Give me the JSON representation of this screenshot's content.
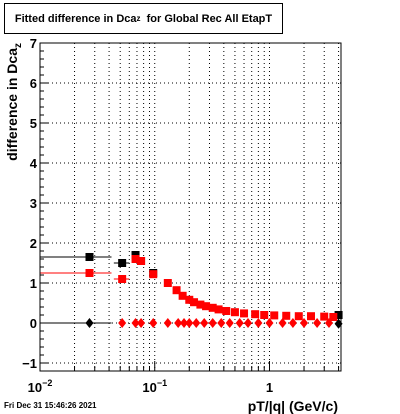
{
  "title": {
    "prefix": "Fitted difference in Dca",
    "subscript": "z",
    "suffix": "for Global Rec All EtapT"
  },
  "timestamp": "Fri Dec 31 15:46:26 2021",
  "chart_data": {
    "type": "scatter",
    "xlabel": "pT/|q| (GeV/c)",
    "ylabel": "difference in Dca",
    "ylabel_subscript": "z",
    "xscale": "log",
    "xlim": [
      0.01,
      4.2
    ],
    "ylim": [
      -1.2,
      7
    ],
    "grid": true,
    "x_ticks": [
      {
        "value": 0.01,
        "mantissa": "10",
        "exponent": "−2"
      },
      {
        "value": 0.1,
        "mantissa": "10",
        "exponent": "−1"
      },
      {
        "value": 1,
        "mantissa": "1",
        "exponent": ""
      }
    ],
    "y_ticks": [
      -1,
      0,
      1,
      2,
      3,
      4,
      5,
      6,
      7
    ],
    "colors": {
      "black_series": "#000000",
      "red_series": "#ff0000",
      "frame": "#000000",
      "grid": "#000000"
    },
    "series": [
      {
        "marker": "square",
        "color": "#000000",
        "points": [
          {
            "x": 0.027,
            "y": 1.65,
            "xerr_lo": 0.017,
            "xerr_hi": 0.015
          },
          {
            "x": 0.052,
            "y": 1.5,
            "xerr_lo": 0.008,
            "xerr_hi": 0.008
          },
          {
            "x": 0.068,
            "y": 1.7,
            "xerr_lo": 0.004,
            "xerr_hi": 0.004
          },
          {
            "x": 0.076,
            "y": 1.55,
            "xerr_lo": 0.004,
            "xerr_hi": 0.004
          },
          {
            "x": 0.097,
            "y": 1.25,
            "xerr_lo": 0.007,
            "xerr_hi": 0.007
          },
          {
            "x": 4.0,
            "y": 0.2,
            "xerr_lo": 0.15,
            "xerr_hi": 0.15
          }
        ]
      },
      {
        "marker": "square",
        "color": "#ff0000",
        "points": [
          {
            "x": 0.027,
            "y": 1.25,
            "xerr_lo": 0.017,
            "xerr_hi": 0.015
          },
          {
            "x": 0.052,
            "y": 1.1,
            "xerr_lo": 0.008,
            "xerr_hi": 0.008
          },
          {
            "x": 0.068,
            "y": 1.6,
            "xerr_lo": 0.004,
            "xerr_hi": 0.004
          },
          {
            "x": 0.076,
            "y": 1.55,
            "xerr_lo": 0.004,
            "xerr_hi": 0.004
          },
          {
            "x": 0.097,
            "y": 1.22,
            "xerr_lo": 0.007,
            "xerr_hi": 0.007
          },
          {
            "x": 0.13,
            "y": 1.0,
            "xerr_lo": 0.006,
            "xerr_hi": 0.006
          },
          {
            "x": 0.155,
            "y": 0.82,
            "xerr_lo": 0.006,
            "xerr_hi": 0.006
          },
          {
            "x": 0.175,
            "y": 0.68,
            "xerr_lo": 0.006,
            "xerr_hi": 0.006
          },
          {
            "x": 0.2,
            "y": 0.58,
            "xerr_lo": 0.006,
            "xerr_hi": 0.006
          },
          {
            "x": 0.22,
            "y": 0.52,
            "xerr_lo": 0.006,
            "xerr_hi": 0.006
          },
          {
            "x": 0.25,
            "y": 0.46,
            "xerr_lo": 0.006,
            "xerr_hi": 0.006
          },
          {
            "x": 0.28,
            "y": 0.42,
            "xerr_lo": 0.006,
            "xerr_hi": 0.006
          },
          {
            "x": 0.32,
            "y": 0.38,
            "xerr_lo": 0.006,
            "xerr_hi": 0.006
          },
          {
            "x": 0.36,
            "y": 0.34,
            "xerr_lo": 0.006,
            "xerr_hi": 0.006
          },
          {
            "x": 0.42,
            "y": 0.3,
            "xerr_lo": 0.006,
            "xerr_hi": 0.006
          },
          {
            "x": 0.5,
            "y": 0.27,
            "xerr_lo": 0.006,
            "xerr_hi": 0.006
          },
          {
            "x": 0.6,
            "y": 0.24,
            "xerr_lo": 0.006,
            "xerr_hi": 0.006
          },
          {
            "x": 0.75,
            "y": 0.22,
            "xerr_lo": 0.006,
            "xerr_hi": 0.006
          },
          {
            "x": 0.9,
            "y": 0.2,
            "xerr_lo": 0.006,
            "xerr_hi": 0.006
          },
          {
            "x": 1.1,
            "y": 0.19,
            "xerr_lo": 0.006,
            "xerr_hi": 0.006
          },
          {
            "x": 1.4,
            "y": 0.18,
            "xerr_lo": 0.006,
            "xerr_hi": 0.006
          },
          {
            "x": 1.8,
            "y": 0.17,
            "xerr_lo": 0.006,
            "xerr_hi": 0.006
          },
          {
            "x": 2.3,
            "y": 0.17,
            "xerr_lo": 0.006,
            "xerr_hi": 0.006
          },
          {
            "x": 3.0,
            "y": 0.16,
            "xerr_lo": 0.006,
            "xerr_hi": 0.006
          },
          {
            "x": 3.6,
            "y": 0.15,
            "xerr_lo": 0.006,
            "xerr_hi": 0.006
          }
        ]
      },
      {
        "marker": "diamond",
        "color": "#000000",
        "points": [
          {
            "x": 0.027,
            "y": 0.0,
            "xerr_lo": 0.017,
            "xerr_hi": 0.015
          },
          {
            "x": 4.0,
            "y": -0.02,
            "xerr_lo": 0.15,
            "xerr_hi": 0.15
          }
        ]
      },
      {
        "marker": "diamond",
        "color": "#ff0000",
        "points": [
          {
            "x": 0.052,
            "y": 0.0
          },
          {
            "x": 0.068,
            "y": 0.0
          },
          {
            "x": 0.076,
            "y": 0.0
          },
          {
            "x": 0.097,
            "y": 0.0
          },
          {
            "x": 0.13,
            "y": 0.0
          },
          {
            "x": 0.16,
            "y": 0.0
          },
          {
            "x": 0.18,
            "y": 0.0
          },
          {
            "x": 0.2,
            "y": 0.0
          },
          {
            "x": 0.23,
            "y": 0.0
          },
          {
            "x": 0.27,
            "y": 0.0
          },
          {
            "x": 0.32,
            "y": 0.0
          },
          {
            "x": 0.38,
            "y": 0.0
          },
          {
            "x": 0.45,
            "y": 0.0
          },
          {
            "x": 0.55,
            "y": 0.0
          },
          {
            "x": 0.65,
            "y": 0.0
          },
          {
            "x": 0.8,
            "y": 0.0
          },
          {
            "x": 1.0,
            "y": 0.0
          },
          {
            "x": 1.3,
            "y": 0.0
          },
          {
            "x": 1.6,
            "y": 0.0
          },
          {
            "x": 2.0,
            "y": 0.0
          },
          {
            "x": 2.6,
            "y": 0.0
          },
          {
            "x": 3.3,
            "y": 0.0
          }
        ]
      }
    ]
  }
}
